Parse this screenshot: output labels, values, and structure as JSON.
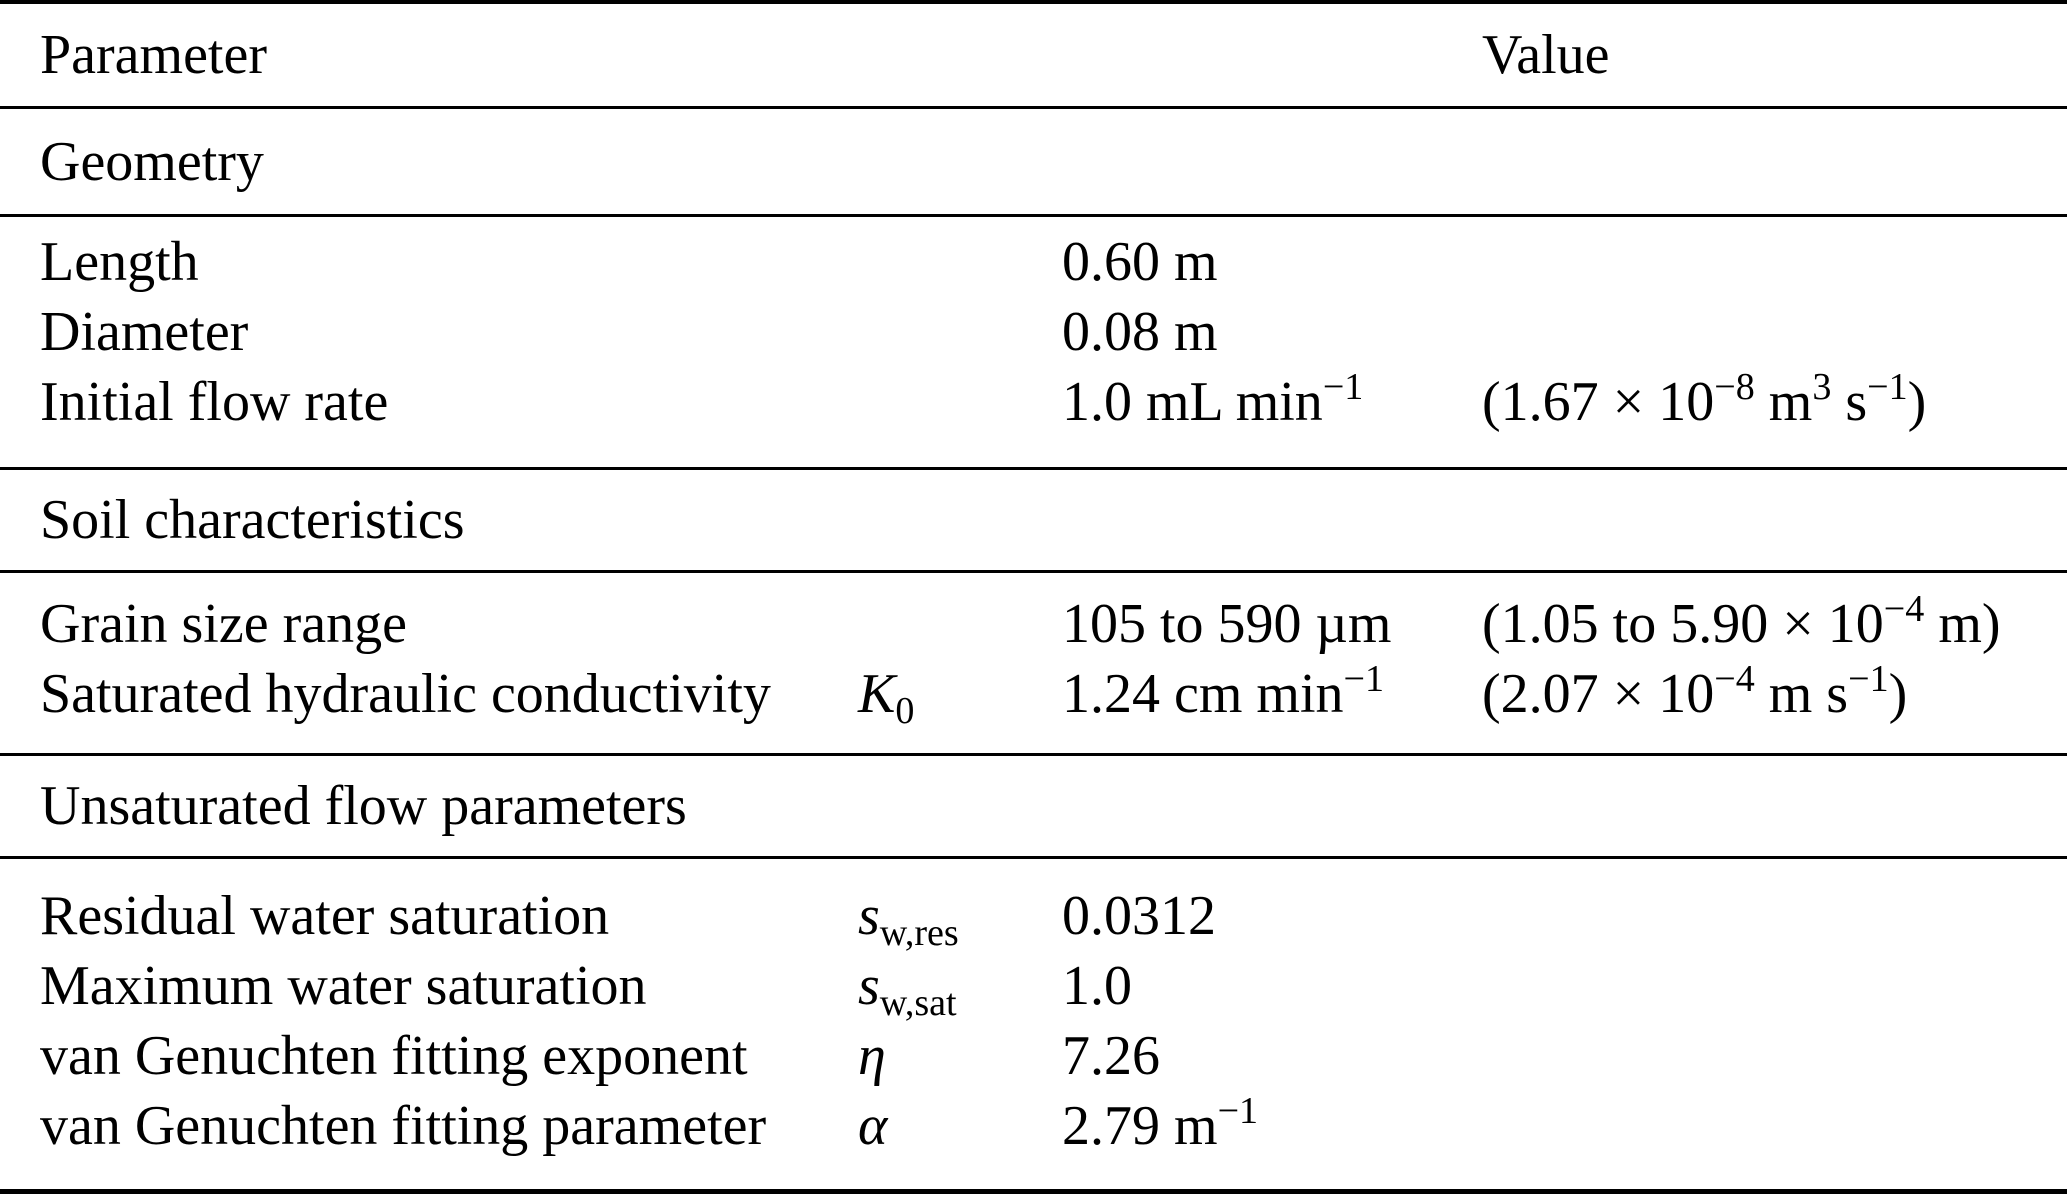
{
  "table": {
    "header": {
      "parameter_label": "Parameter",
      "value_label": "Value"
    },
    "colors": {
      "background": "#ffffff",
      "text": "#000000",
      "rule": "#000000"
    },
    "sections": [
      {
        "title": "Geometry",
        "rows": [
          {
            "name": "Length",
            "symbol": [],
            "value": [
              {
                "t": "0.60 m"
              }
            ],
            "si": []
          },
          {
            "name": "Diameter",
            "symbol": [],
            "value": [
              {
                "t": "0.08 m"
              }
            ],
            "si": []
          },
          {
            "name": "Initial flow rate",
            "symbol": [],
            "value": [
              {
                "t": "1.0 mL min"
              },
              {
                "sup": "−1"
              }
            ],
            "si": [
              {
                "t": "(1.67 × 10"
              },
              {
                "sup": "−8"
              },
              {
                "t": " m"
              },
              {
                "sup": "3"
              },
              {
                "t": " s"
              },
              {
                "sup": "−1"
              },
              {
                "t": ")"
              }
            ]
          }
        ]
      },
      {
        "title": "Soil characteristics",
        "rows": [
          {
            "name": "Grain size range",
            "symbol": [],
            "value": [
              {
                "t": "105 to 590 µm"
              }
            ],
            "si": [
              {
                "t": "(1.05 to 5.90 × 10"
              },
              {
                "sup": "−4"
              },
              {
                "t": " m)"
              }
            ]
          },
          {
            "name": "Saturated hydraulic conductivity",
            "symbol": [
              {
                "i": "K"
              },
              {
                "sub": "0"
              }
            ],
            "value": [
              {
                "t": "1.24 cm min"
              },
              {
                "sup": "−1"
              }
            ],
            "si": [
              {
                "t": "(2.07 × 10"
              },
              {
                "sup": "−4"
              },
              {
                "t": " m s"
              },
              {
                "sup": "−1"
              },
              {
                "t": ")"
              }
            ]
          }
        ]
      },
      {
        "title": "Unsaturated flow parameters",
        "rows": [
          {
            "name": "Residual water saturation",
            "symbol": [
              {
                "i": "s"
              },
              {
                "sub": "w,res"
              }
            ],
            "value": [
              {
                "t": "0.0312"
              }
            ],
            "si": []
          },
          {
            "name": "Maximum water saturation",
            "symbol": [
              {
                "i": "s"
              },
              {
                "sub": "w,sat"
              }
            ],
            "value": [
              {
                "t": "1.0"
              }
            ],
            "si": []
          },
          {
            "name": "van Genuchten fitting exponent",
            "symbol": [
              {
                "i": "η"
              }
            ],
            "value": [
              {
                "t": "7.26"
              }
            ],
            "si": []
          },
          {
            "name": "van Genuchten fitting parameter",
            "symbol": [
              {
                "i": "α"
              }
            ],
            "value": [
              {
                "t": "2.79 m"
              },
              {
                "sup": "−1"
              }
            ],
            "si": []
          }
        ]
      }
    ]
  }
}
